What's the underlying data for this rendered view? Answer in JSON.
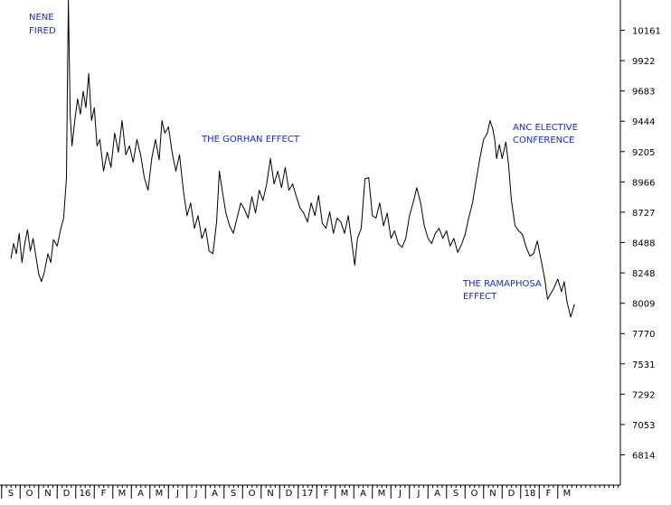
{
  "chart_data": {
    "type": "line",
    "title": "",
    "xlabel": "",
    "ylabel": "",
    "ylim": [
      6575,
      10400
    ],
    "y_ticks": [
      6814,
      7053,
      7292,
      7531,
      7770,
      8009,
      8248,
      8488,
      8727,
      8966,
      9205,
      9444,
      9683,
      9922,
      10161
    ],
    "x_ticks": [
      "S",
      "O",
      "N",
      "D",
      "16",
      "F",
      "M",
      "A",
      "M",
      "J",
      "J",
      "A",
      "S",
      "O",
      "N",
      "D",
      "17",
      "F",
      "M",
      "A",
      "M",
      "J",
      "J",
      "A",
      "S",
      "O",
      "N",
      "D",
      "18",
      "F",
      "M"
    ],
    "grid": false,
    "line_color": "#000000",
    "annotation_color": "#1a2fb8",
    "annotations": [
      {
        "lines": [
          "NENE",
          "FIRED"
        ]
      },
      {
        "lines": [
          "THE GORHAN EFFECT"
        ]
      },
      {
        "lines": [
          "ANC ELECTIVE",
          "CONFERENCE"
        ]
      },
      {
        "lines": [
          "THE RAMAPHOSA",
          "EFFECT"
        ]
      }
    ],
    "x_start_month": 0,
    "x_end_month": 30.7,
    "series": [
      {
        "points": [
          [
            0.0,
            8360
          ],
          [
            0.15,
            8480
          ],
          [
            0.3,
            8400
          ],
          [
            0.45,
            8560
          ],
          [
            0.6,
            8330
          ],
          [
            0.75,
            8480
          ],
          [
            0.9,
            8590
          ],
          [
            1.05,
            8420
          ],
          [
            1.2,
            8520
          ],
          [
            1.35,
            8380
          ],
          [
            1.5,
            8240
          ],
          [
            1.65,
            8180
          ],
          [
            1.8,
            8250
          ],
          [
            2.0,
            8400
          ],
          [
            2.15,
            8330
          ],
          [
            2.3,
            8510
          ],
          [
            2.5,
            8460
          ],
          [
            2.7,
            8600
          ],
          [
            2.85,
            8680
          ],
          [
            3.0,
            9000
          ],
          [
            3.05,
            9700
          ],
          [
            3.1,
            10400
          ],
          [
            3.2,
            9500
          ],
          [
            3.3,
            9250
          ],
          [
            3.45,
            9450
          ],
          [
            3.6,
            9620
          ],
          [
            3.75,
            9500
          ],
          [
            3.9,
            9680
          ],
          [
            4.05,
            9550
          ],
          [
            4.2,
            9820
          ],
          [
            4.35,
            9450
          ],
          [
            4.5,
            9550
          ],
          [
            4.65,
            9250
          ],
          [
            4.8,
            9300
          ],
          [
            5.0,
            9050
          ],
          [
            5.2,
            9200
          ],
          [
            5.4,
            9080
          ],
          [
            5.6,
            9350
          ],
          [
            5.8,
            9200
          ],
          [
            6.0,
            9450
          ],
          [
            6.2,
            9180
          ],
          [
            6.4,
            9250
          ],
          [
            6.6,
            9120
          ],
          [
            6.8,
            9300
          ],
          [
            7.0,
            9180
          ],
          [
            7.2,
            9000
          ],
          [
            7.4,
            8900
          ],
          [
            7.6,
            9150
          ],
          [
            7.8,
            9300
          ],
          [
            8.0,
            9140
          ],
          [
            8.15,
            9450
          ],
          [
            8.3,
            9350
          ],
          [
            8.5,
            9400
          ],
          [
            8.7,
            9200
          ],
          [
            8.9,
            9050
          ],
          [
            9.1,
            9180
          ],
          [
            9.3,
            8900
          ],
          [
            9.5,
            8700
          ],
          [
            9.7,
            8800
          ],
          [
            9.9,
            8600
          ],
          [
            10.1,
            8700
          ],
          [
            10.3,
            8520
          ],
          [
            10.5,
            8600
          ],
          [
            10.7,
            8420
          ],
          [
            10.9,
            8400
          ],
          [
            11.1,
            8650
          ],
          [
            11.25,
            9050
          ],
          [
            11.4,
            8900
          ],
          [
            11.6,
            8720
          ],
          [
            11.8,
            8620
          ],
          [
            12.0,
            8560
          ],
          [
            12.2,
            8680
          ],
          [
            12.4,
            8800
          ],
          [
            12.6,
            8750
          ],
          [
            12.8,
            8680
          ],
          [
            13.0,
            8850
          ],
          [
            13.2,
            8720
          ],
          [
            13.4,
            8900
          ],
          [
            13.6,
            8820
          ],
          [
            13.8,
            8950
          ],
          [
            14.0,
            9150
          ],
          [
            14.2,
            8950
          ],
          [
            14.4,
            9050
          ],
          [
            14.6,
            8920
          ],
          [
            14.8,
            9080
          ],
          [
            15.0,
            8900
          ],
          [
            15.2,
            8950
          ],
          [
            15.4,
            8850
          ],
          [
            15.6,
            8760
          ],
          [
            15.8,
            8720
          ],
          [
            16.0,
            8650
          ],
          [
            16.2,
            8800
          ],
          [
            16.4,
            8700
          ],
          [
            16.6,
            8860
          ],
          [
            16.8,
            8640
          ],
          [
            17.0,
            8600
          ],
          [
            17.2,
            8730
          ],
          [
            17.4,
            8560
          ],
          [
            17.6,
            8680
          ],
          [
            17.8,
            8650
          ],
          [
            18.0,
            8560
          ],
          [
            18.2,
            8700
          ],
          [
            18.4,
            8480
          ],
          [
            18.55,
            8310
          ],
          [
            18.7,
            8520
          ],
          [
            18.9,
            8600
          ],
          [
            19.1,
            8990
          ],
          [
            19.3,
            9000
          ],
          [
            19.5,
            8700
          ],
          [
            19.7,
            8680
          ],
          [
            19.9,
            8800
          ],
          [
            20.1,
            8620
          ],
          [
            20.3,
            8720
          ],
          [
            20.5,
            8520
          ],
          [
            20.7,
            8580
          ],
          [
            20.9,
            8480
          ],
          [
            21.1,
            8450
          ],
          [
            21.3,
            8520
          ],
          [
            21.5,
            8700
          ],
          [
            21.7,
            8800
          ],
          [
            21.9,
            8920
          ],
          [
            22.1,
            8800
          ],
          [
            22.3,
            8620
          ],
          [
            22.5,
            8520
          ],
          [
            22.7,
            8480
          ],
          [
            22.9,
            8560
          ],
          [
            23.1,
            8600
          ],
          [
            23.3,
            8520
          ],
          [
            23.5,
            8580
          ],
          [
            23.7,
            8460
          ],
          [
            23.9,
            8520
          ],
          [
            24.1,
            8410
          ],
          [
            24.3,
            8470
          ],
          [
            24.5,
            8550
          ],
          [
            24.7,
            8680
          ],
          [
            24.9,
            8800
          ],
          [
            25.1,
            8980
          ],
          [
            25.3,
            9150
          ],
          [
            25.5,
            9300
          ],
          [
            25.7,
            9350
          ],
          [
            25.85,
            9450
          ],
          [
            26.0,
            9380
          ],
          [
            26.1,
            9300
          ],
          [
            26.2,
            9150
          ],
          [
            26.35,
            9260
          ],
          [
            26.5,
            9150
          ],
          [
            26.7,
            9280
          ],
          [
            26.85,
            9100
          ],
          [
            27.0,
            8820
          ],
          [
            27.2,
            8620
          ],
          [
            27.4,
            8580
          ],
          [
            27.6,
            8550
          ],
          [
            27.8,
            8450
          ],
          [
            28.0,
            8380
          ],
          [
            28.2,
            8400
          ],
          [
            28.4,
            8500
          ],
          [
            28.6,
            8350
          ],
          [
            28.8,
            8200
          ],
          [
            28.95,
            8040
          ],
          [
            29.1,
            8080
          ],
          [
            29.3,
            8130
          ],
          [
            29.5,
            8200
          ],
          [
            29.7,
            8100
          ],
          [
            29.85,
            8180
          ],
          [
            30.0,
            8020
          ],
          [
            30.2,
            7900
          ],
          [
            30.4,
            8000
          ]
        ]
      }
    ]
  }
}
